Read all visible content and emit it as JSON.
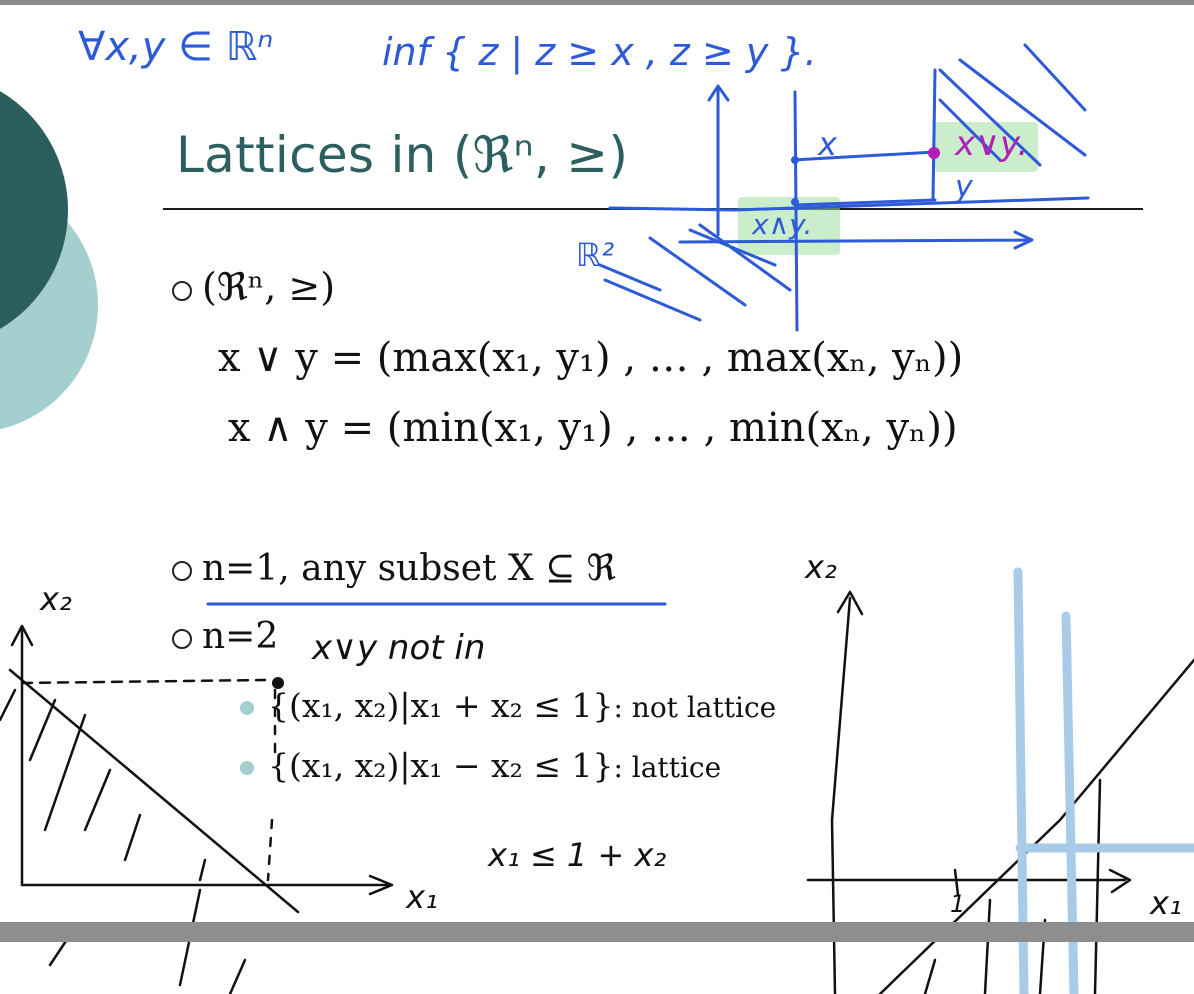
{
  "slide": {
    "title": "Lattices in (ℜⁿ, ≥)",
    "bullet_1": "(ℜⁿ, ≥)",
    "join_formula": "x ∨ y = (max(x₁, y₁) , … , max(xₙ, yₙ))",
    "meet_formula": "x ∧ y = (min(x₁, y₁) , … , min(xₙ, yₙ))",
    "bullet_2": "n=1, any subset X ⊆ ℜ",
    "bullet_3": "n=2",
    "sub_1_set": "{(x₁, x₂)|x₁ + x₂ ≤ 1}",
    "sub_1_note": ": not lattice",
    "sub_2_set": "{(x₁, x₂)|x₁ − x₂ ≤ 1}",
    "sub_2_note": ": lattice"
  },
  "annotations": {
    "top_left": "∀x,y ∈ ℝⁿ",
    "top_inf": "inf { z | z ≥ x , z ≥ y }.",
    "x_label": "x",
    "y_label": "y",
    "join_label": "x∨y.",
    "meet_label": "x∧y.",
    "r2_label": "ℝ²",
    "not_in": "x∨y  not in",
    "ineq": "x₁ ≤ 1 + x₂",
    "left_axis_y": "x₂",
    "left_axis_x": "x₁",
    "right_axis_y": "x₂",
    "right_axis_x": "x₁",
    "right_tick": "1"
  },
  "colors": {
    "title": "#2e5f5f",
    "ink_blue": "#2d5ad6",
    "ink_purple": "#b01fb8",
    "highlight_green": "#9fe0a0",
    "highlight_lightblue": "#a9cbea",
    "circle_dark": "#2a5f5d",
    "circle_light": "#a5cfcf"
  }
}
